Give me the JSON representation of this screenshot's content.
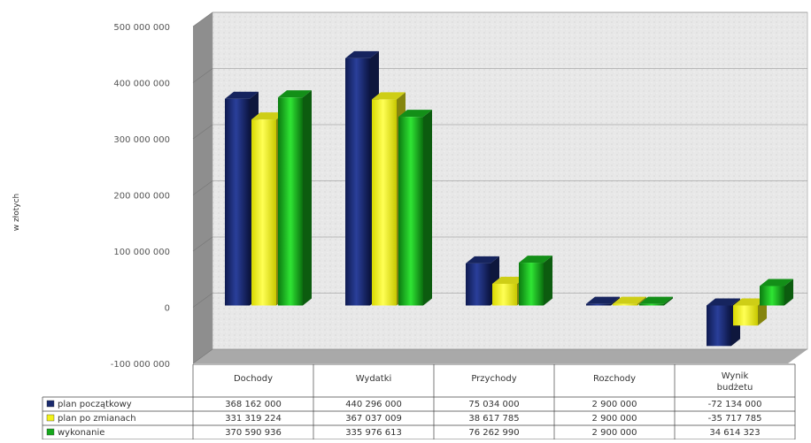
{
  "chart_data": {
    "type": "bar",
    "ylabel": "w złotych",
    "ylim": [
      -100000000,
      500000000
    ],
    "yticks": [
      500000000,
      400000000,
      300000000,
      200000000,
      100000000,
      0,
      -100000000
    ],
    "ytick_labels": [
      "500 000 000",
      "400 000 000",
      "300 000 000",
      "200 000 000",
      "100 000 000",
      "0",
      "-100 000 000"
    ],
    "categories": [
      [
        "Dochody"
      ],
      [
        "Wydatki"
      ],
      [
        "Przychody"
      ],
      [
        "Rozchody"
      ],
      [
        "Wynik",
        "budżetu"
      ]
    ],
    "series": [
      {
        "name": "plan początkowy",
        "color": "#1a2a6e",
        "values": [
          368162000,
          440296000,
          75034000,
          2900000,
          -72134000
        ],
        "labels": [
          "368 162 000",
          "440 296 000",
          "75 034 000",
          "2 900 000",
          "-72 134 000"
        ]
      },
      {
        "name": "plan po zmianach",
        "color": "#f2f21a",
        "values": [
          331319224,
          367037009,
          38617785,
          2900000,
          -35717785
        ],
        "labels": [
          "331 319 224",
          "367 037 009",
          "38 617 785",
          "2 900 000",
          "-35 717 785"
        ]
      },
      {
        "name": "wykonanie",
        "color": "#16a81c",
        "values": [
          370590936,
          335976613,
          76262990,
          2900000,
          34614323
        ],
        "labels": [
          "370 590 936",
          "335 976 613",
          "76 262 990",
          "2 900 000",
          "34 614 323"
        ]
      }
    ],
    "grid": true,
    "legend": "data-table"
  }
}
